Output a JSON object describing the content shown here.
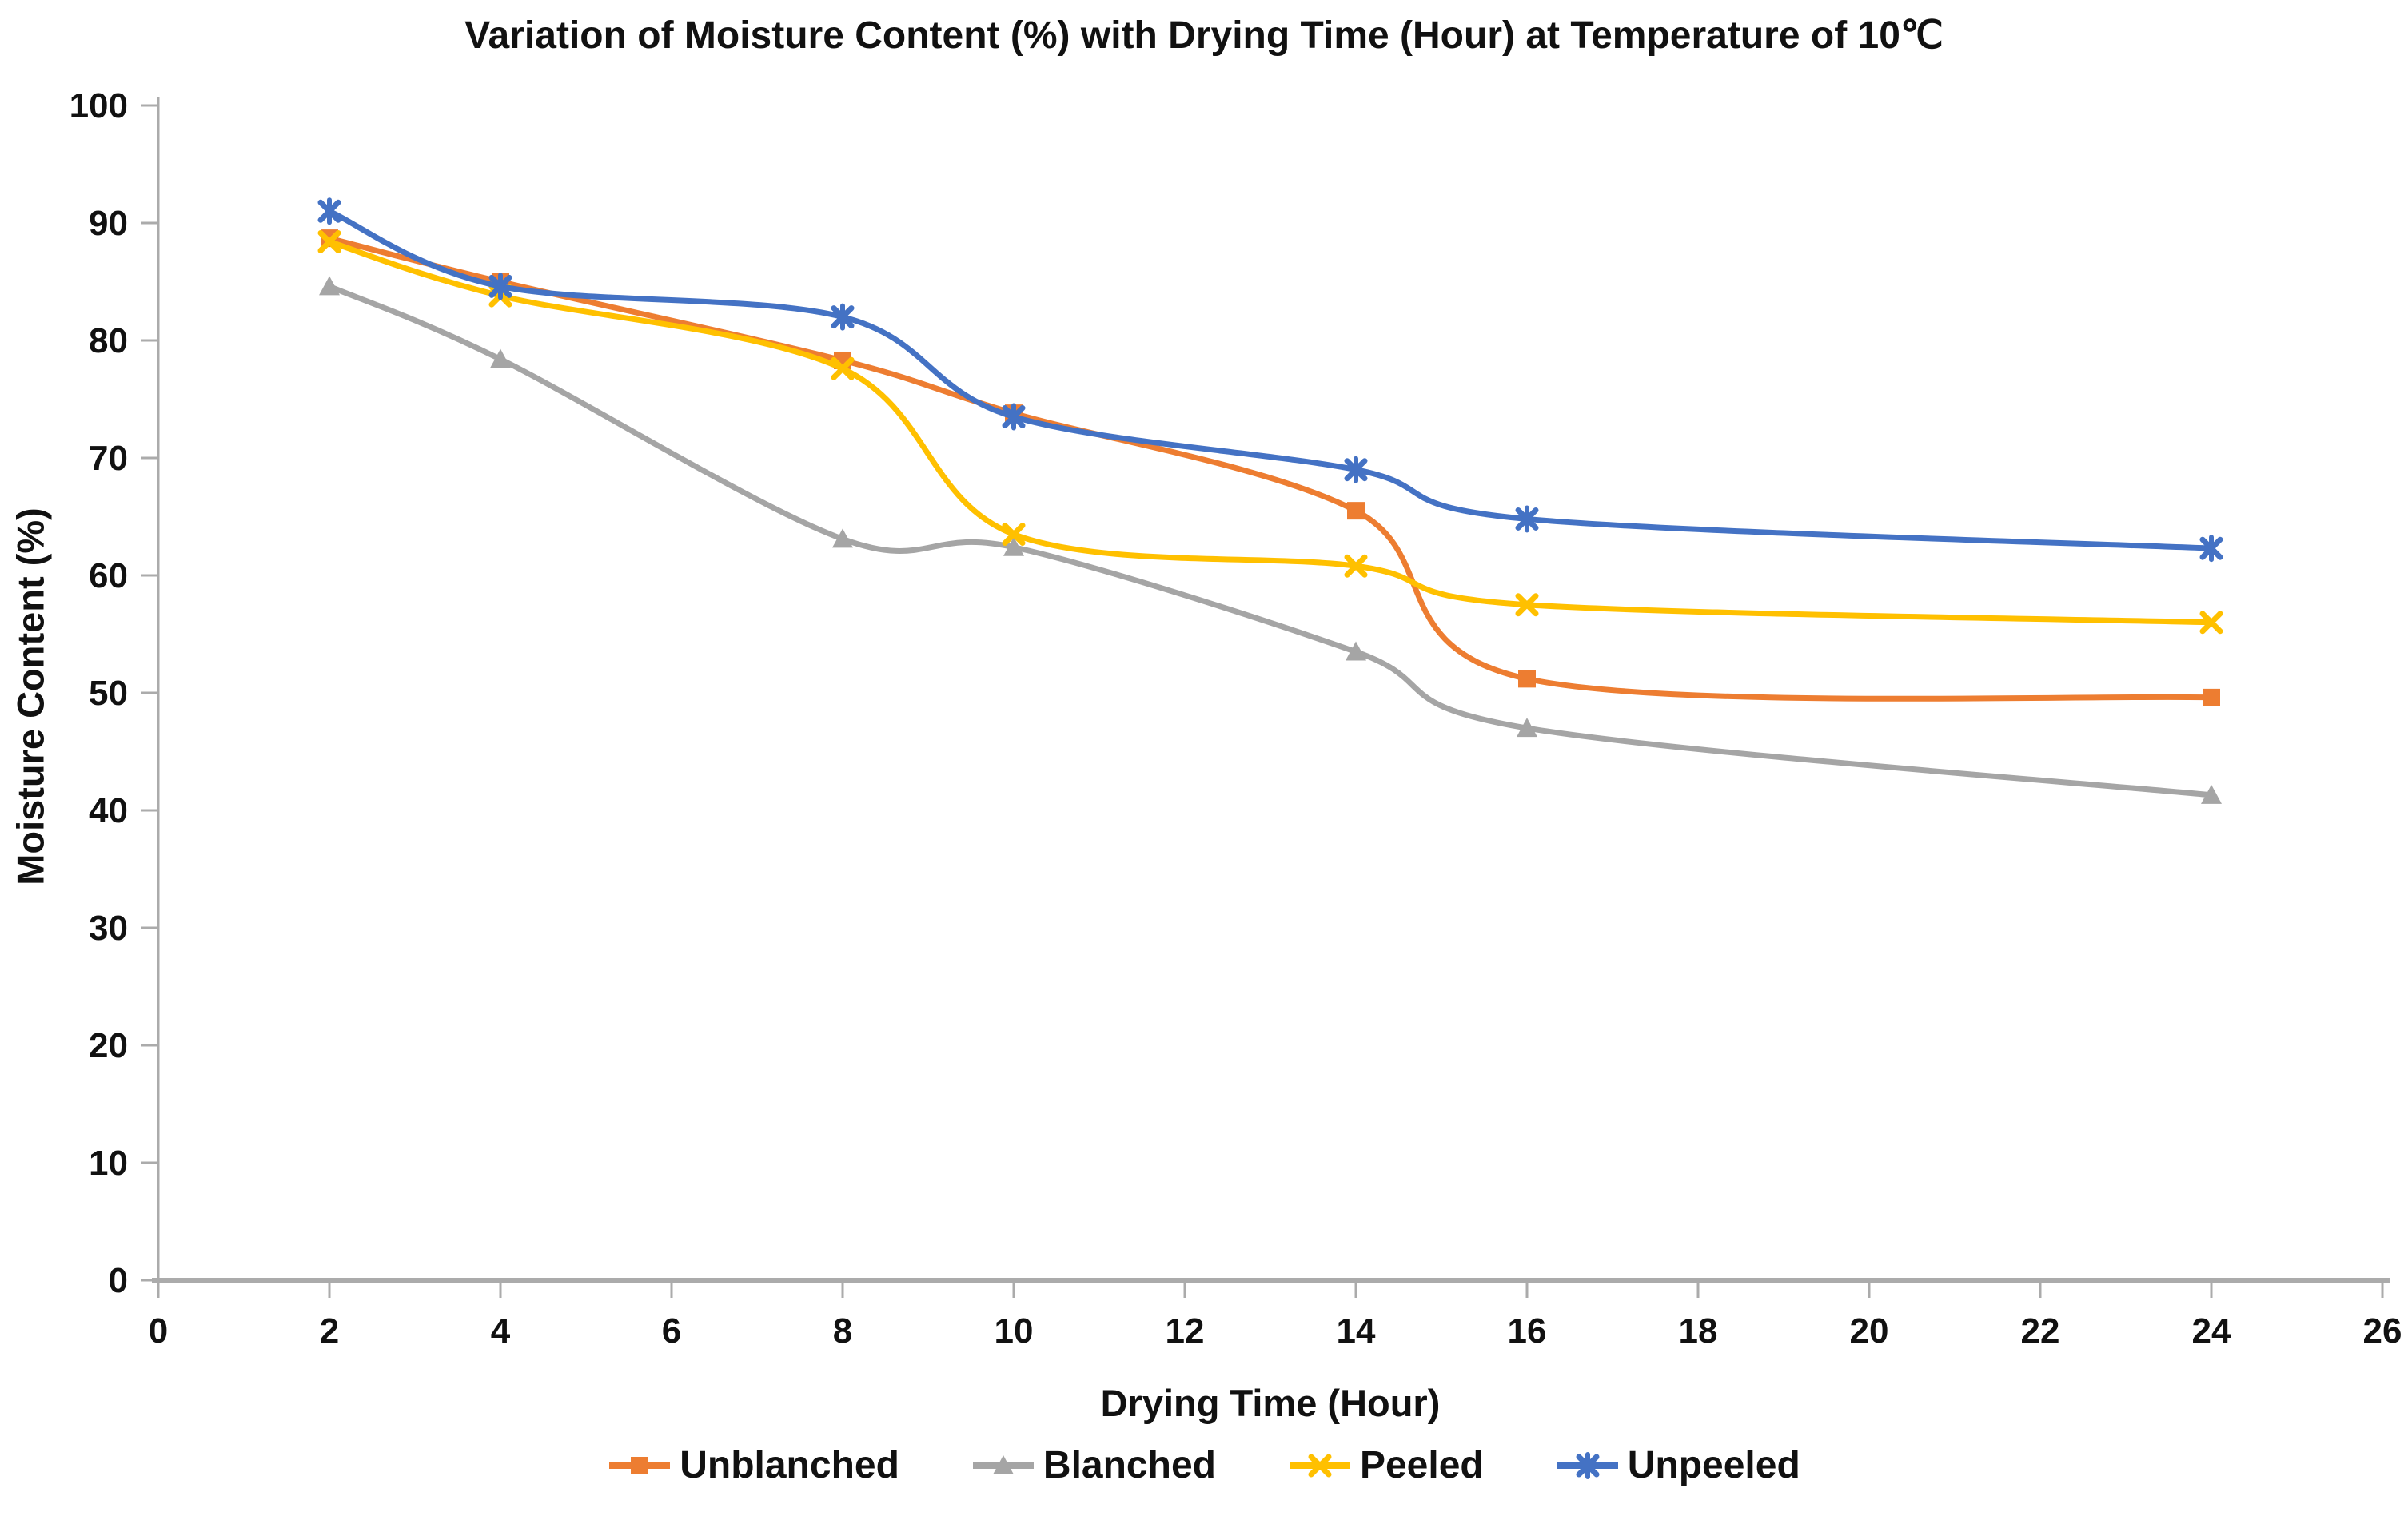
{
  "chart_data": {
    "type": "line",
    "title": "Variation of Moisture Content (%) with Drying Time (Hour) at Temperature of 10℃",
    "xlabel": "Drying Time (Hour)",
    "ylabel": "Moisture Content (%)",
    "x": [
      2,
      4,
      8,
      10,
      14,
      16,
      24
    ],
    "xlim": [
      0,
      26
    ],
    "ylim": [
      0,
      100
    ],
    "xticks": [
      0,
      2,
      4,
      6,
      8,
      10,
      12,
      14,
      16,
      18,
      20,
      22,
      24,
      26
    ],
    "yticks": [
      0,
      10,
      20,
      30,
      40,
      50,
      60,
      70,
      80,
      90,
      100
    ],
    "grid": false,
    "legend_position": "bottom",
    "axis_color": "#ABABAB",
    "text_color": "#111111",
    "series": [
      {
        "name": "Unblanched",
        "color": "#ED7D31",
        "marker": "square",
        "values": [
          88.7,
          85.0,
          78.3,
          73.8,
          65.5,
          51.2,
          49.6
        ]
      },
      {
        "name": "Blanched",
        "color": "#A5A5A5",
        "marker": "triangle",
        "values": [
          84.6,
          78.4,
          63.1,
          62.4,
          53.5,
          47.0,
          41.3
        ]
      },
      {
        "name": "Peeled",
        "color": "#FFC000",
        "marker": "x",
        "values": [
          88.4,
          83.8,
          77.6,
          63.5,
          60.8,
          57.5,
          56.0
        ]
      },
      {
        "name": "Unpeeled",
        "color": "#4472C4",
        "marker": "star",
        "values": [
          91.0,
          84.6,
          82.0,
          73.5,
          69.0,
          64.8,
          62.3
        ]
      }
    ]
  }
}
